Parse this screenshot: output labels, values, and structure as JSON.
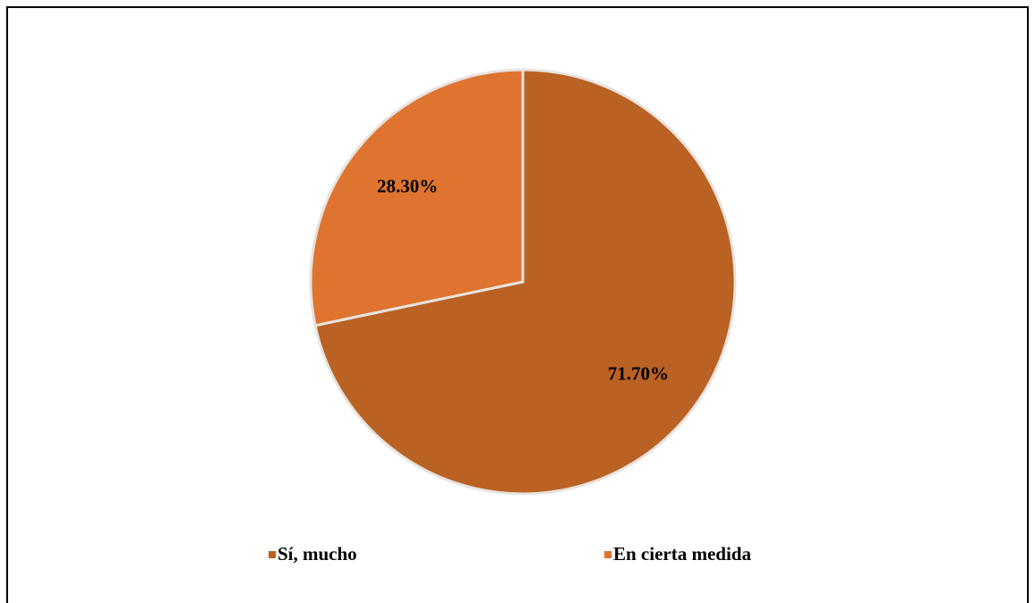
{
  "chart_data": {
    "type": "pie",
    "categories": [
      "Sí, mucho",
      "En cierta medida"
    ],
    "values": [
      71.7,
      28.3
    ],
    "value_labels": [
      "71.70%",
      "28.30%"
    ],
    "colors": [
      "#ba6124",
      "#de7430"
    ],
    "legend": "bottom"
  }
}
